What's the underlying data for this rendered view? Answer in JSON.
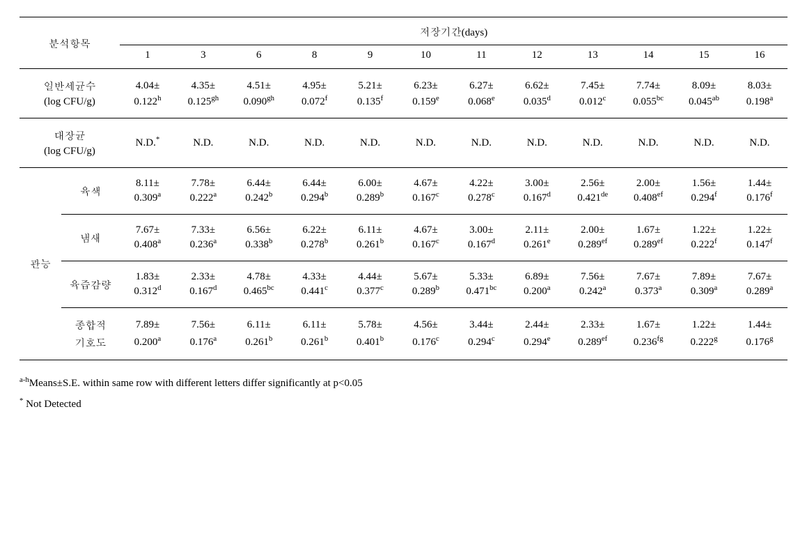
{
  "header": {
    "analysis_label": "분석항목",
    "period_label": "저장기간(days)",
    "days": [
      "1",
      "3",
      "6",
      "8",
      "9",
      "10",
      "11",
      "12",
      "13",
      "14",
      "15",
      "16"
    ]
  },
  "rows": {
    "bacteria": {
      "label_top": "일반세균수",
      "label_bot": "(log CFU/g)",
      "top": [
        "4.04±",
        "4.35±",
        "4.51±",
        "4.95±",
        "5.21±",
        "6.23±",
        "6.27±",
        "6.62±",
        "7.45±",
        "7.74±",
        "8.09±",
        "8.03±"
      ],
      "bot_val": [
        "0.122",
        "0.125",
        "0.090",
        "0.072",
        "0.135",
        "0.159",
        "0.068",
        "0.035",
        "0.012",
        "0.055",
        "0.045",
        "0.198"
      ],
      "bot_sup": [
        "h",
        "gh",
        "gh",
        "f",
        "f",
        "e",
        "e",
        "d",
        "c",
        "bc",
        "ab",
        "a"
      ]
    },
    "ecoli": {
      "label_top": "대장균",
      "label_bot": "(log CFU/g)",
      "first_val": "N.D.",
      "first_sup": "*",
      "rest": [
        "N.D.",
        "N.D.",
        "N.D.",
        "N.D.",
        "N.D.",
        "N.D.",
        "N.D.",
        "N.D.",
        "N.D.",
        "N.D.",
        "N.D."
      ]
    },
    "sensory_label": "관능",
    "color": {
      "label": "육색",
      "top": [
        "8.11±",
        "7.78±",
        "6.44±",
        "6.44±",
        "6.00±",
        "4.67±",
        "4.22±",
        "3.00±",
        "2.56±",
        "2.00±",
        "1.56±",
        "1.44±"
      ],
      "bot_val": [
        "0.309",
        "0.222",
        "0.242",
        "0.294",
        "0.289",
        "0.167",
        "0.278",
        "0.167",
        "0.421",
        "0.408",
        "0.294",
        "0.176"
      ],
      "bot_sup": [
        "a",
        "a",
        "b",
        "b",
        "b",
        "c",
        "c",
        "d",
        "de",
        "ef",
        "f",
        "f"
      ]
    },
    "odor": {
      "label": "냄새",
      "top": [
        "7.67±",
        "7.33±",
        "6.56±",
        "6.22±",
        "6.11±",
        "4.67±",
        "3.00±",
        "2.11±",
        "2.00±",
        "1.67±",
        "1.22±",
        "1.22±"
      ],
      "bot_val": [
        "0.408",
        "0.236",
        "0.338",
        "0.278",
        "0.261",
        "0.167",
        "0.167",
        "0.261",
        "0.289",
        "0.289",
        "0.222",
        "0.147"
      ],
      "bot_sup": [
        "a",
        "a",
        "b",
        "b",
        "b",
        "c",
        "d",
        "e",
        "ef",
        "ef",
        "f",
        "f"
      ]
    },
    "drip": {
      "label": "육즙감량",
      "top": [
        "1.83±",
        "2.33±",
        "4.78±",
        "4.33±",
        "4.44±",
        "5.67±",
        "5.33±",
        "6.89±",
        "7.56±",
        "7.67±",
        "7.89±",
        "7.67±"
      ],
      "bot_val": [
        "0.312",
        "0.167",
        "0.465",
        "0.441",
        "0.377",
        "0.289",
        "0.471",
        "0.200",
        "0.242",
        "0.373",
        "0.309",
        "0.289"
      ],
      "bot_sup": [
        "d",
        "d",
        "bc",
        "c",
        "c",
        "b",
        "bc",
        "a",
        "a",
        "a",
        "a",
        "a"
      ]
    },
    "overall": {
      "label_top": "종합적",
      "label_bot": "기호도",
      "top": [
        "7.89±",
        "7.56±",
        "6.11±",
        "6.11±",
        "5.78±",
        "4.56±",
        "3.44±",
        "2.44±",
        "2.33±",
        "1.67±",
        "1.22±",
        "1.44±"
      ],
      "bot_val": [
        "0.200",
        "0.176",
        "0.261",
        "0.261",
        "0.401",
        "0.176",
        "0.294",
        "0.294",
        "0.289",
        "0.236",
        "0.222",
        "0.176"
      ],
      "bot_sup": [
        "a",
        "a",
        "b",
        "b",
        "b",
        "c",
        "c",
        "e",
        "ef",
        "fg",
        "g",
        "g"
      ]
    }
  },
  "footnotes": {
    "sig_sup": "a-h",
    "sig_text": "Means±S.E. within same row with different letters differ significantly at p<0.05",
    "nd_sup": "*",
    "nd_text": " Not Detected"
  }
}
